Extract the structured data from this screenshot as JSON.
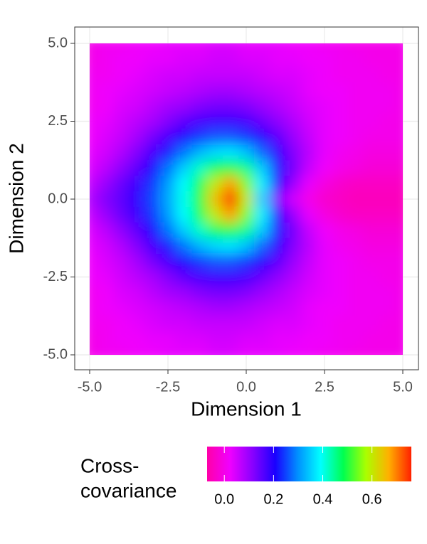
{
  "chart_data": {
    "type": "heatmap",
    "x_label": "Dimension 1",
    "y_label": "Dimension 2",
    "legend_title": [
      "Cross-",
      "covariance"
    ],
    "x": [
      -5,
      -4.5,
      -4,
      -3.5,
      -3,
      -2.5,
      -2,
      -1.5,
      -1,
      -0.5,
      0,
      0.5,
      1,
      1.5,
      2,
      2.5,
      3,
      3.5,
      4,
      4.5,
      5
    ],
    "y": [
      5,
      4.5,
      4,
      3.5,
      3,
      2.5,
      2,
      1.5,
      1,
      0.5,
      0,
      -0.5,
      -1,
      -1.5,
      -2,
      -2.5,
      -3,
      -3.5,
      -4,
      -4.5,
      -5
    ],
    "z": [
      [
        0.0,
        0.01,
        0.01,
        0.02,
        0.02,
        0.03,
        0.03,
        0.03,
        0.04,
        0.04,
        0.03,
        0.03,
        0.03,
        0.02,
        0.02,
        0.01,
        0.01,
        0.0,
        0.0,
        0.0,
        0.0
      ],
      [
        0.0,
        0.01,
        0.02,
        0.02,
        0.03,
        0.03,
        0.04,
        0.04,
        0.05,
        0.05,
        0.04,
        0.04,
        0.03,
        0.03,
        0.02,
        0.02,
        0.01,
        0.01,
        0.0,
        0.0,
        0.0
      ],
      [
        0.01,
        0.01,
        0.02,
        0.03,
        0.04,
        0.05,
        0.05,
        0.06,
        0.06,
        0.06,
        0.06,
        0.05,
        0.04,
        0.04,
        0.03,
        0.02,
        0.01,
        0.01,
        0.01,
        0.0,
        0.0
      ],
      [
        0.01,
        0.02,
        0.03,
        0.04,
        0.05,
        0.06,
        0.07,
        0.08,
        0.09,
        0.09,
        0.08,
        0.07,
        0.06,
        0.05,
        0.03,
        0.02,
        0.02,
        0.01,
        0.01,
        0.01,
        0.0
      ],
      [
        0.01,
        0.02,
        0.04,
        0.05,
        0.07,
        0.09,
        0.1,
        0.12,
        0.13,
        0.13,
        0.12,
        0.1,
        0.08,
        0.06,
        0.04,
        0.03,
        0.02,
        0.01,
        0.01,
        0.01,
        0.0
      ],
      [
        0.02,
        0.03,
        0.05,
        0.07,
        0.09,
        0.12,
        0.15,
        0.17,
        0.18,
        0.18,
        0.17,
        0.14,
        0.11,
        0.08,
        0.05,
        0.03,
        0.02,
        0.01,
        0.01,
        0.0,
        0.0
      ],
      [
        0.02,
        0.04,
        0.06,
        0.09,
        0.13,
        0.17,
        0.21,
        0.24,
        0.26,
        0.26,
        0.24,
        0.2,
        0.15,
        0.1,
        0.06,
        0.03,
        0.02,
        0.01,
        0.0,
        0.0,
        0.0
      ],
      [
        0.03,
        0.05,
        0.08,
        0.12,
        0.17,
        0.22,
        0.28,
        0.33,
        0.36,
        0.37,
        0.34,
        0.27,
        0.19,
        0.12,
        0.07,
        0.03,
        0.01,
        0.0,
        -0.01,
        -0.01,
        -0.01
      ],
      [
        0.04,
        0.07,
        0.11,
        0.15,
        0.21,
        0.28,
        0.35,
        0.42,
        0.48,
        0.5,
        0.45,
        0.35,
        0.22,
        0.13,
        0.06,
        0.02,
        0.0,
        -0.01,
        -0.02,
        -0.02,
        -0.02
      ],
      [
        0.06,
        0.1,
        0.14,
        0.18,
        0.24,
        0.31,
        0.39,
        0.48,
        0.6,
        0.68,
        0.55,
        0.38,
        0.2,
        0.1,
        0.03,
        -0.01,
        -0.03,
        -0.04,
        -0.04,
        -0.04,
        -0.04
      ],
      [
        0.08,
        0.12,
        0.15,
        0.19,
        0.25,
        0.32,
        0.4,
        0.5,
        0.65,
        0.77,
        0.6,
        0.35,
        0.12,
        0.05,
        0.0,
        -0.03,
        -0.04,
        -0.05,
        -0.05,
        -0.05,
        -0.05
      ],
      [
        0.06,
        0.1,
        0.14,
        0.18,
        0.24,
        0.31,
        0.39,
        0.48,
        0.6,
        0.68,
        0.55,
        0.38,
        0.2,
        0.1,
        0.03,
        -0.01,
        -0.03,
        -0.04,
        -0.04,
        -0.04,
        -0.04
      ],
      [
        0.04,
        0.07,
        0.11,
        0.15,
        0.21,
        0.28,
        0.35,
        0.42,
        0.48,
        0.5,
        0.45,
        0.35,
        0.22,
        0.13,
        0.06,
        0.02,
        0.0,
        -0.01,
        -0.02,
        -0.02,
        -0.02
      ],
      [
        0.03,
        0.05,
        0.08,
        0.12,
        0.17,
        0.22,
        0.28,
        0.33,
        0.36,
        0.37,
        0.34,
        0.27,
        0.19,
        0.12,
        0.07,
        0.03,
        0.01,
        0.0,
        -0.01,
        -0.01,
        -0.01
      ],
      [
        0.02,
        0.04,
        0.06,
        0.09,
        0.13,
        0.17,
        0.21,
        0.24,
        0.26,
        0.26,
        0.24,
        0.2,
        0.15,
        0.1,
        0.06,
        0.03,
        0.02,
        0.01,
        0.0,
        0.0,
        0.0
      ],
      [
        0.02,
        0.03,
        0.05,
        0.07,
        0.09,
        0.12,
        0.15,
        0.17,
        0.18,
        0.18,
        0.17,
        0.14,
        0.11,
        0.08,
        0.05,
        0.03,
        0.02,
        0.01,
        0.01,
        0.0,
        0.0
      ],
      [
        0.01,
        0.02,
        0.04,
        0.05,
        0.07,
        0.09,
        0.1,
        0.12,
        0.13,
        0.13,
        0.12,
        0.1,
        0.08,
        0.06,
        0.04,
        0.03,
        0.02,
        0.01,
        0.01,
        0.01,
        0.0
      ],
      [
        0.01,
        0.02,
        0.03,
        0.04,
        0.05,
        0.06,
        0.07,
        0.08,
        0.09,
        0.09,
        0.08,
        0.07,
        0.06,
        0.05,
        0.03,
        0.02,
        0.02,
        0.01,
        0.01,
        0.01,
        0.0
      ],
      [
        0.01,
        0.01,
        0.02,
        0.03,
        0.04,
        0.05,
        0.05,
        0.06,
        0.06,
        0.06,
        0.06,
        0.05,
        0.04,
        0.04,
        0.03,
        0.02,
        0.01,
        0.01,
        0.01,
        0.0,
        0.0
      ],
      [
        0.0,
        0.01,
        0.02,
        0.02,
        0.03,
        0.03,
        0.04,
        0.04,
        0.05,
        0.05,
        0.04,
        0.04,
        0.03,
        0.03,
        0.02,
        0.02,
        0.01,
        0.01,
        0.0,
        0.0,
        0.0
      ],
      [
        0.0,
        0.01,
        0.01,
        0.02,
        0.02,
        0.03,
        0.03,
        0.03,
        0.04,
        0.04,
        0.03,
        0.03,
        0.03,
        0.02,
        0.02,
        0.01,
        0.01,
        0.0,
        0.0,
        0.0,
        0.0
      ]
    ],
    "xlim": [
      -5,
      5
    ],
    "ylim": [
      -5,
      5
    ],
    "xticks": [
      {
        "value": -5,
        "label": "-5.0"
      },
      -2.5,
      {
        "value": 0,
        "label": "0.0"
      },
      2.5,
      {
        "value": 5,
        "label": "5.0"
      }
    ],
    "yticks": [
      {
        "value": -5,
        "label": "-5.0"
      },
      -2.5,
      {
        "value": 0,
        "label": "0.0"
      },
      2.5,
      {
        "value": 5,
        "label": "5.0"
      }
    ],
    "zlim": [
      -0.07,
      0.76
    ],
    "zticks": [
      {
        "value": 0,
        "label": "0.0"
      },
      0.2,
      0.4,
      0.6
    ],
    "colorscale": [
      "#ff00a8",
      "#f000ff",
      "#8a00ff",
      "#1a00ff",
      "#0090ff",
      "#00ffff",
      "#00ff50",
      "#aaff00",
      "#ffb000",
      "#ff2000"
    ],
    "grid": true,
    "legend_position": "bottom"
  }
}
